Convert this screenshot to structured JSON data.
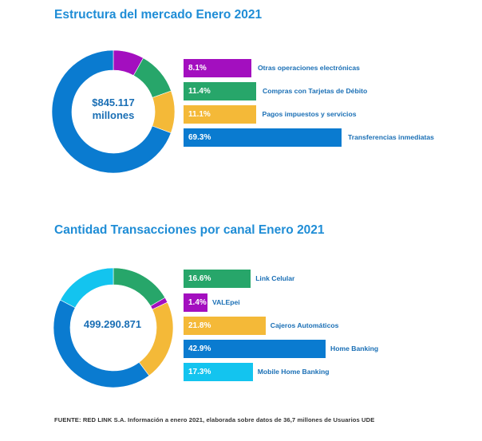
{
  "chart_data": [
    {
      "type": "donut+bar",
      "title": "Estructura del mercado Enero 2021",
      "center_label": "$845.117\nmillones",
      "categories": [
        "Otras operaciones electrónicas",
        "Compras con Tarjetas de Débito",
        "Pagos impuestos y servicios",
        "Transferencias inmediatas"
      ],
      "values": [
        8.1,
        11.4,
        11.1,
        69.3
      ],
      "value_labels": [
        "8.1%",
        "11.4%",
        "11.1%",
        "69.3%"
      ],
      "colors": [
        "#a30fbf",
        "#27a66a",
        "#f4b938",
        "#0a7bd0"
      ]
    },
    {
      "type": "donut+bar",
      "title": "Cantidad Transacciones por canal Enero 2021",
      "center_label": "499.290.871",
      "categories": [
        "Link Celular",
        "VALEpei",
        "Cajeros Automáticos",
        "Home Banking",
        "Mobile Home Banking"
      ],
      "values": [
        16.6,
        1.4,
        21.8,
        42.9,
        17.3
      ],
      "value_labels": [
        "16.6%",
        "1.4%",
        "21.8%",
        "42.9%",
        "17.3%"
      ],
      "colors": [
        "#27a66a",
        "#a30fbf",
        "#f4b938",
        "#0a7bd0",
        "#13c4ef"
      ]
    }
  ],
  "footnote": "FUENTE: RED LINK S.A. Información a enero 2021, elaborada sobre datos de 36,7 millones de Usuarios UDE"
}
